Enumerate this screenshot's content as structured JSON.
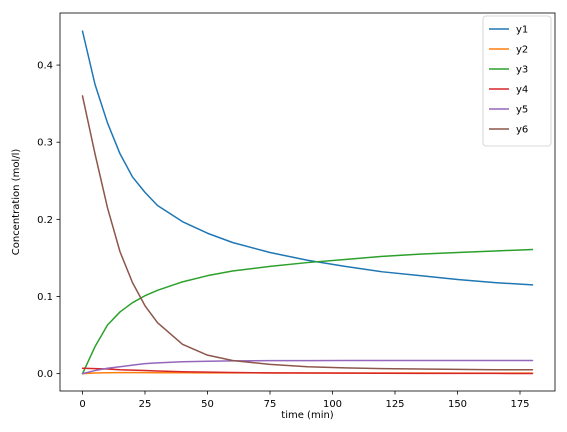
{
  "chart_data": {
    "type": "line",
    "title": "",
    "xlabel": "time (min)",
    "ylabel": "Concentration (mol/l)",
    "xlim": [
      -9,
      189
    ],
    "ylim": [
      -0.0225,
      0.4675
    ],
    "xticks": [
      0,
      25,
      50,
      75,
      100,
      125,
      150,
      175
    ],
    "yticks": [
      0.0,
      0.1,
      0.2,
      0.3,
      0.4
    ],
    "xtick_labels": [
      "0",
      "25",
      "50",
      "75",
      "100",
      "125",
      "150",
      "175"
    ],
    "ytick_labels": [
      "0.0",
      "0.1",
      "0.2",
      "0.3",
      "0.4"
    ],
    "grid": false,
    "legend_position": "top-right",
    "x": [
      0,
      5,
      10,
      15,
      20,
      25,
      30,
      40,
      50,
      60,
      75,
      90,
      105,
      120,
      135,
      150,
      165,
      180
    ],
    "series": [
      {
        "name": "y1",
        "color": "#1f77b4",
        "values": [
          0.444,
          0.375,
          0.325,
          0.285,
          0.255,
          0.235,
          0.218,
          0.197,
          0.182,
          0.17,
          0.157,
          0.147,
          0.139,
          0.132,
          0.127,
          0.122,
          0.118,
          0.115
        ]
      },
      {
        "name": "y2",
        "color": "#ff7f0e",
        "values": [
          0.0,
          0.0008,
          0.0012,
          0.0013,
          0.0013,
          0.0013,
          0.0012,
          0.0011,
          0.001,
          0.001,
          0.0009,
          0.0009,
          0.0008,
          0.0008,
          0.0008,
          0.0007,
          0.0007,
          0.0007
        ]
      },
      {
        "name": "y3",
        "color": "#2ca02c",
        "values": [
          0.0,
          0.035,
          0.063,
          0.08,
          0.092,
          0.101,
          0.108,
          0.119,
          0.127,
          0.133,
          0.139,
          0.144,
          0.148,
          0.152,
          0.155,
          0.157,
          0.159,
          0.161
        ]
      },
      {
        "name": "y4",
        "color": "#d62728",
        "values": [
          0.007,
          0.0065,
          0.006,
          0.005,
          0.0045,
          0.004,
          0.0035,
          0.0025,
          0.002,
          0.0015,
          0.001,
          0.0008,
          0.0006,
          0.0005,
          0.0004,
          0.0003,
          0.0003,
          0.0002
        ]
      },
      {
        "name": "y5",
        "color": "#9467bd",
        "values": [
          0.0,
          0.004,
          0.007,
          0.009,
          0.011,
          0.013,
          0.014,
          0.0155,
          0.016,
          0.0165,
          0.0168,
          0.0169,
          0.017,
          0.017,
          0.017,
          0.017,
          0.017,
          0.017
        ]
      },
      {
        "name": "y6",
        "color": "#8c564b",
        "values": [
          0.36,
          0.285,
          0.215,
          0.158,
          0.118,
          0.088,
          0.066,
          0.038,
          0.024,
          0.017,
          0.012,
          0.009,
          0.0075,
          0.0065,
          0.006,
          0.0055,
          0.005,
          0.005
        ]
      }
    ]
  }
}
